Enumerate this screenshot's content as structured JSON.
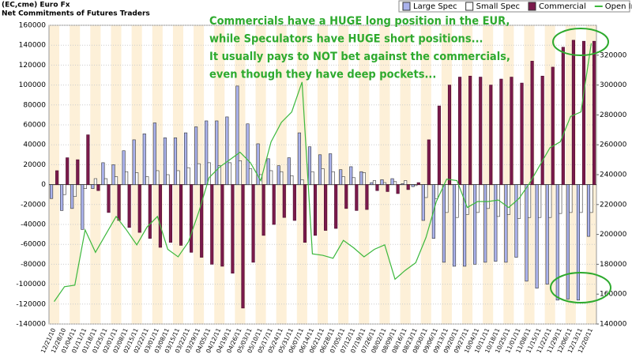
{
  "chart_data": {
    "type": "bar",
    "title": "(EC,cme) Euro Fx",
    "subtitle": "Net Commitments of Futures Traders",
    "annotations": [
      "Commercials have a HUGE long position in the EUR,",
      "while Speculators have HUGE short positions...",
      "It usually pays to NOT bet against the commercials,",
      "even though they have deep pockets..."
    ],
    "categories": [
      "12/21/10",
      "12/28/10",
      "01/04/11",
      "01/11/11",
      "01/18/11",
      "01/25/11",
      "02/01/11",
      "02/08/11",
      "02/15/11",
      "02/22/11",
      "03/01/11",
      "03/08/11",
      "03/15/11",
      "03/22/11",
      "03/29/11",
      "04/05/11",
      "04/12/11",
      "04/19/11",
      "04/26/11",
      "05/03/11",
      "05/10/11",
      "05/17/11",
      "05/24/11",
      "05/31/11",
      "06/07/11",
      "06/14/11",
      "06/21/11",
      "06/28/11",
      "07/05/11",
      "07/12/11",
      "07/19/11",
      "07/26/11",
      "08/02/11",
      "08/09/11",
      "08/16/11",
      "08/23/11",
      "08/30/11",
      "09/06/11",
      "09/13/11",
      "09/20/11",
      "09/27/11",
      "10/04/11",
      "10/11/11",
      "10/18/11",
      "10/25/11",
      "11/01/11",
      "11/08/11",
      "11/15/11",
      "11/22/11",
      "11/29/11",
      "12/06/11",
      "12/13/11",
      "12/20/11"
    ],
    "series": [
      {
        "name": "Large Spec",
        "color": "#aab2ec",
        "values": [
          -14000,
          -26000,
          -24000,
          -45000,
          -4000,
          22000,
          20000,
          34000,
          45000,
          51000,
          62000,
          47000,
          47000,
          52000,
          58000,
          64000,
          64000,
          68000,
          99000,
          61000,
          41000,
          26000,
          19000,
          27000,
          52000,
          38000,
          30000,
          31000,
          15000,
          18000,
          13000,
          2000,
          5000,
          6000,
          1000,
          -2000,
          -36000,
          -54000,
          -78000,
          -82000,
          -82000,
          -80000,
          -78000,
          -77000,
          -78000,
          -73000,
          -97000,
          -104000,
          -100000,
          -116000,
          -115000,
          -116000,
          -52000
        ]
      },
      {
        "name": "Small Spec",
        "color": "#ffffff",
        "values": [
          0,
          -10000,
          -12000,
          -4000,
          6000,
          6000,
          8000,
          13000,
          12000,
          8000,
          14000,
          10000,
          14000,
          17000,
          21000,
          22000,
          19000,
          22000,
          24000,
          16000,
          10000,
          14000,
          13000,
          9000,
          5000,
          13000,
          16000,
          13000,
          8000,
          7000,
          12000,
          4000,
          2000,
          3000,
          4000,
          -1000,
          -13000,
          -14000,
          -28000,
          -33000,
          -30000,
          -28000,
          -24000,
          -32000,
          -30000,
          -34000,
          -33000,
          -33000,
          -33000,
          -29000,
          -28000,
          -28000,
          -28000
        ]
      },
      {
        "name": "Commercial",
        "color": "#7b1a4c",
        "values": [
          14000,
          27000,
          25000,
          50000,
          -6000,
          -28000,
          -36000,
          -43000,
          -48000,
          -54000,
          -63000,
          -58000,
          -61000,
          -68000,
          -73000,
          -80000,
          -82000,
          -89000,
          -124000,
          -78000,
          -51000,
          -40000,
          -33000,
          -36000,
          -58000,
          -51000,
          -46000,
          -44000,
          -24000,
          -26000,
          -25000,
          -6000,
          -7000,
          -9000,
          -5000,
          2000,
          45000,
          79000,
          100000,
          108000,
          109000,
          108000,
          100000,
          106000,
          108000,
          102000,
          124000,
          109000,
          118000,
          138000,
          145000,
          144000,
          144000
        ]
      },
      {
        "name": "Open Interest",
        "color": "#3cb83c",
        "axis": "y2",
        "type": "line",
        "values": [
          155000,
          165000,
          166000,
          203000,
          188000,
          200000,
          212000,
          203000,
          193000,
          205000,
          212000,
          190000,
          185000,
          195000,
          215000,
          238000,
          245000,
          250000,
          255000,
          248000,
          236000,
          262000,
          275000,
          282000,
          302000,
          187000,
          186000,
          184000,
          196000,
          191000,
          185000,
          190000,
          193000,
          170000,
          176000,
          181000,
          198000,
          222000,
          237000,
          236000,
          218000,
          222000,
          222000,
          223000,
          218000,
          224000,
          234000,
          246000,
          258000,
          262000,
          279000,
          282000,
          328000
        ]
      }
    ],
    "ylim": [
      -140000,
      160000
    ],
    "yticks": [
      -140000,
      -120000,
      -100000,
      -80000,
      -60000,
      -40000,
      -20000,
      0,
      20000,
      40000,
      60000,
      80000,
      100000,
      120000,
      140000,
      160000
    ],
    "y2lim": [
      140000,
      340000
    ],
    "y2ticks": [
      140000,
      160000,
      180000,
      200000,
      220000,
      240000,
      260000,
      280000,
      300000,
      320000
    ],
    "grid": true,
    "legend": "top-right"
  }
}
